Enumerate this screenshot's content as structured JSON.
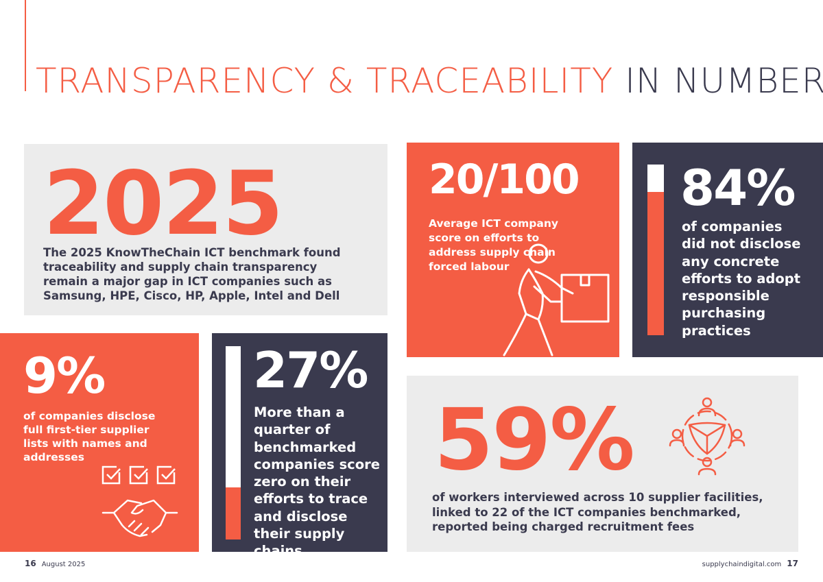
{
  "page": {
    "title_highlight": "TRANSPARENCY & TRACEABILITY",
    "title_rest": "IN NUMBERS"
  },
  "colors": {
    "accent": "#f45d44",
    "navy": "#3a3a4e",
    "grey": "#ececec",
    "white": "#ffffff"
  },
  "stats": {
    "benchmark": {
      "value": "2025",
      "text": "The 2025 KnowTheChain ICT benchmark found traceability and supply chain transparency remain a major gap in ICT companies such as Samsung, HPE, Cisco, HP, Apple, Intel and Dell"
    },
    "score": {
      "value": "20/100",
      "text": "Average ICT company score on efforts to address supply chain forced labour",
      "icon": "worker-carrying-box-icon"
    },
    "purchasing": {
      "value": "84%",
      "fraction": 0.84,
      "text": "of companies did not disclose any concrete efforts to adopt responsible purchasing practices"
    },
    "supplier_lists": {
      "value": "9%",
      "text": "of companies disclose full first-tier supplier lists with names and addresses",
      "icons": [
        "checkbox-icon",
        "checkbox-icon",
        "checkbox-icon",
        "handshake-icon"
      ]
    },
    "zero_score": {
      "value": "27%",
      "fraction": 0.27,
      "text": "More than a quarter of benchmarked companies score zero on their efforts to trace and disclose their supply chains"
    },
    "recruitment_fees": {
      "value": "59%",
      "text": "of workers interviewed across 10 supplier facilities, linked to 22 of the ICT companies benchmarked, reported being charged recruitment fees",
      "icon": "connected-people-network-icon"
    }
  },
  "footer": {
    "left_page": "16",
    "date": "August 2025",
    "site": "supplychaindigital.com",
    "right_page": "17"
  }
}
